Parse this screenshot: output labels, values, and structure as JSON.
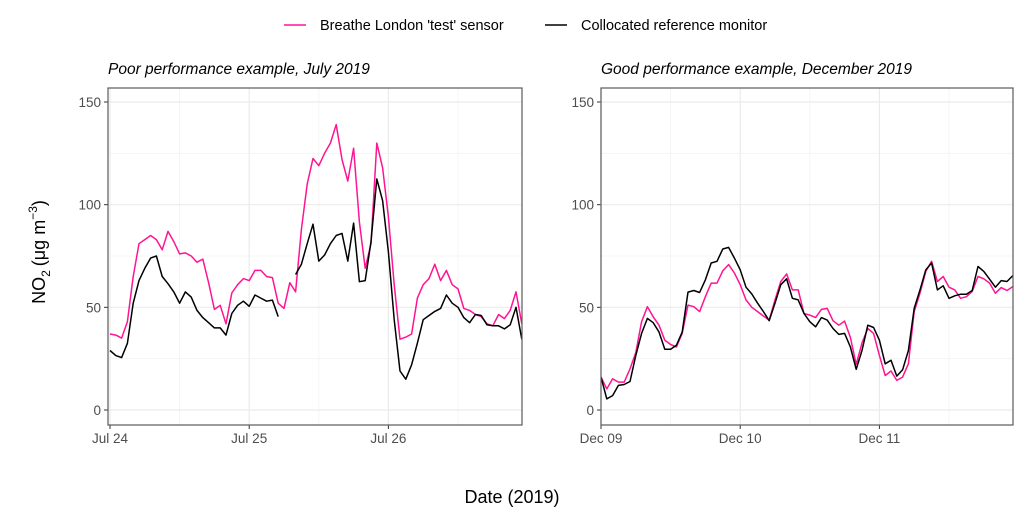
{
  "legend": {
    "position": "top",
    "items": [
      {
        "label": "Breathe London 'test' sensor",
        "color": "#ff1493"
      },
      {
        "label": "Collocated reference monitor",
        "color": "#000000"
      }
    ]
  },
  "axis_labels": {
    "y_main": "NO",
    "y_sub": "2",
    "y_unit": "(μg m",
    "y_sup": "−3",
    "y_close": ")",
    "x": "Date (2019)"
  },
  "chart_data": [
    {
      "type": "line",
      "title": "Poor performance example, July 2019",
      "x_unit": "hours from Jul 24 00:00",
      "x_ticks": [
        {
          "hour": 0,
          "label": "Jul 24"
        },
        {
          "hour": 24,
          "label": "Jul 25"
        },
        {
          "hour": 48,
          "label": "Jul 26"
        }
      ],
      "y_ticks": [
        "0",
        "50",
        "100",
        "150"
      ],
      "ylim": [
        -7,
        158
      ],
      "xlim": [
        0,
        71
      ],
      "grid": true,
      "series": [
        {
          "name": "Breathe London 'test' sensor",
          "color": "#ff1493",
          "values": [
            37,
            36.5,
            35,
            43,
            65,
            81,
            83,
            85,
            83,
            78,
            87,
            82,
            76,
            76.5,
            75,
            72,
            73.5,
            62,
            49,
            51,
            42,
            57,
            61,
            64,
            63,
            68,
            68,
            65,
            64.5,
            52,
            49.5,
            62,
            57.5,
            88,
            110,
            122.5,
            119,
            125,
            130,
            139,
            122,
            111.5,
            127.5,
            91.5,
            69,
            81,
            130,
            118,
            94,
            61,
            34.5,
            35.5,
            37,
            54.5,
            61,
            64,
            71,
            63,
            68,
            61,
            59,
            49.5,
            48.5,
            46.5,
            45.5,
            42,
            41,
            46.5,
            44.5,
            48.5,
            57.5,
            42
          ]
        },
        {
          "name": "Collocated reference monitor",
          "color": "#000000",
          "values": [
            29,
            26.5,
            25.5,
            32.5,
            52,
            63,
            69,
            74,
            75,
            65,
            61.5,
            57.5,
            52,
            57.5,
            55,
            48.5,
            45,
            42.5,
            40,
            40,
            36.5,
            47,
            51,
            53,
            50.5,
            56,
            54.5,
            53,
            53.5,
            45.5,
            null,
            null,
            66,
            71,
            81,
            90.5,
            72.5,
            75.5,
            81,
            85,
            86,
            72.5,
            91,
            62.5,
            63,
            82,
            112.5,
            102,
            77,
            44,
            19,
            15,
            22,
            32.6,
            44,
            46,
            48,
            49.5,
            56,
            52,
            50,
            45,
            42.5,
            46.5,
            46,
            41.5,
            41,
            41,
            39.5,
            41.5,
            50,
            34.5
          ]
        }
      ]
    },
    {
      "type": "line",
      "title": "Good performance example, December 2019",
      "x_unit": "hours from Dec 09 00:00",
      "x_ticks": [
        {
          "hour": 0,
          "label": "Dec 09"
        },
        {
          "hour": 24,
          "label": "Dec 10"
        },
        {
          "hour": 48,
          "label": "Dec 11"
        }
      ],
      "y_ticks": [
        "0",
        "50",
        "100",
        "150"
      ],
      "ylim": [
        -7,
        158
      ],
      "xlim": [
        0,
        71
      ],
      "grid": true,
      "series": [
        {
          "name": "Breathe London 'test' sensor",
          "color": "#ff1493",
          "values": [
            16,
            10.3,
            15.2,
            13.6,
            13.6,
            20,
            28,
            43,
            50.3,
            45.4,
            41.3,
            34,
            31.9,
            30.7,
            37.3,
            51.1,
            50.3,
            47.9,
            55.2,
            61.8,
            61.8,
            67.8,
            70.8,
            66.7,
            61,
            53.6,
            50,
            47.9,
            45.8,
            43.8,
            53.6,
            62.6,
            66.3,
            58.5,
            58.5,
            47,
            46.2,
            45,
            49,
            49.5,
            43.5,
            41.3,
            43.3,
            35.3,
            22.2,
            32.7,
            39.7,
            37.3,
            26.6,
            16.8,
            19,
            14.4,
            16,
            22.5,
            47.9,
            56.9,
            67.5,
            72.4,
            62.6,
            65,
            59.8,
            58.5,
            54.4,
            55.2,
            57.7,
            65,
            63.9,
            61.8,
            56.9,
            59.6,
            58.2,
            60.1
          ]
        },
        {
          "name": "Collocated reference monitor",
          "color": "#000000",
          "values": [
            16,
            5.4,
            7,
            12,
            12.4,
            13.9,
            26.6,
            37.3,
            44.6,
            42.5,
            38,
            29.6,
            29.6,
            31.5,
            38,
            57.4,
            58.2,
            57.2,
            63.4,
            71.6,
            72.4,
            78.4,
            79.2,
            74,
            68.3,
            59.8,
            56.5,
            52,
            47.9,
            43.5,
            52,
            61,
            63.9,
            54.4,
            53.6,
            47,
            43,
            40.5,
            45,
            43.8,
            39.7,
            36.8,
            37.3,
            30.7,
            19.8,
            29,
            41.3,
            40.2,
            34,
            22.5,
            24.2,
            16.5,
            19.6,
            29,
            49.5,
            58.5,
            68.3,
            71.6,
            58.5,
            60.5,
            54.4,
            55.6,
            56.4,
            56.4,
            58.2,
            69.9,
            67.5,
            63.7,
            59.8,
            63,
            62.6,
            65.4
          ]
        }
      ]
    }
  ]
}
